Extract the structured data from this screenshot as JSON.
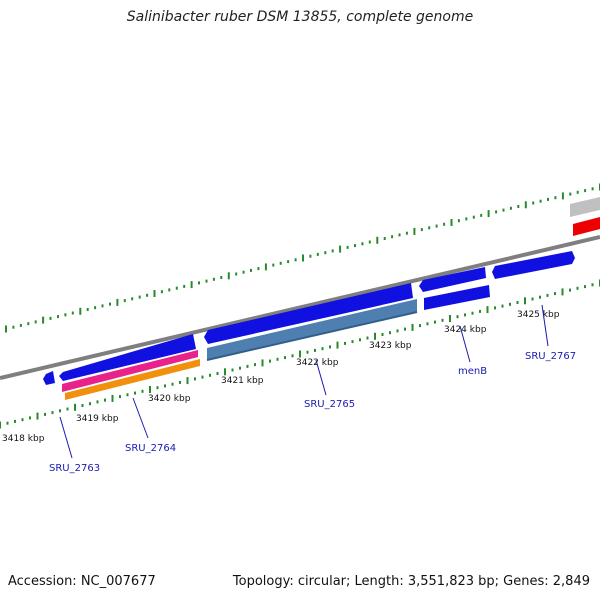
{
  "title": "Salinibacter ruber DSM 13855, complete genome",
  "footer": {
    "accession": "Accession: NC_007677",
    "summary": "Topology: circular; Length: 3,551,823 bp; Genes: 2,849"
  },
  "colors": {
    "backbone": "#7f7f7f",
    "ticks": "#2a8a2a",
    "cds": "#1010e0",
    "cds_steel": "#4f7fb0",
    "rna_pink": "#e8228a",
    "rna_orange": "#f0900c",
    "gray_feature": "#c0c0c0",
    "red_feature": "#ee0000",
    "label": "#1a1ab0"
  },
  "ticks": [
    {
      "label": "3418 kbp"
    },
    {
      "label": "3419 kbp"
    },
    {
      "label": "3420 kbp"
    },
    {
      "label": "3421 kbp"
    },
    {
      "label": "3422 kbp"
    },
    {
      "label": "3423 kbp"
    },
    {
      "label": "3424 kbp"
    },
    {
      "label": "3425 kbp"
    }
  ],
  "genes": [
    {
      "label": "SRU_2763"
    },
    {
      "label": "SRU_2764"
    },
    {
      "label": "SRU_2765"
    },
    {
      "label": "menB"
    },
    {
      "label": "SRU_2767"
    }
  ]
}
